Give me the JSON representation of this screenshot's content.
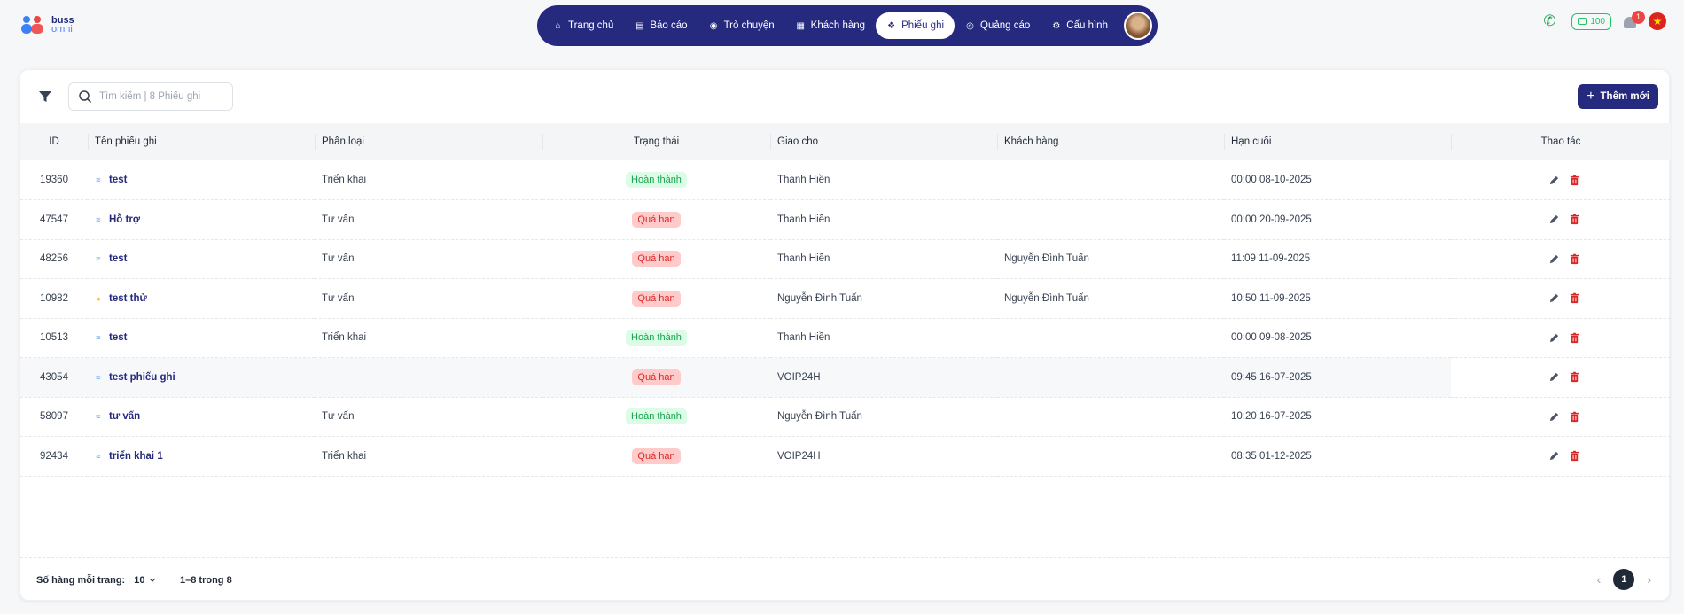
{
  "brand": {
    "line1": "buss",
    "line2": "omni"
  },
  "nav": {
    "items": [
      {
        "label": "Trang chủ",
        "icon": "home-icon",
        "active": false
      },
      {
        "label": "Báo cáo",
        "icon": "chart-icon",
        "active": false
      },
      {
        "label": "Trò chuyện",
        "icon": "chat-icon",
        "active": false
      },
      {
        "label": "Khách hàng",
        "icon": "contact-icon",
        "active": false
      },
      {
        "label": "Phiếu ghi",
        "icon": "ticket-icon",
        "active": true
      },
      {
        "label": "Quảng cáo",
        "icon": "ads-icon",
        "active": false
      },
      {
        "label": "Cấu hình",
        "icon": "gear-icon",
        "active": false
      }
    ]
  },
  "header_right": {
    "credit": "100",
    "notifications": "1"
  },
  "toolbar": {
    "search_placeholder": "Tìm kiếm | 8 Phiếu ghi",
    "add_label": "Thêm mới"
  },
  "table": {
    "columns": {
      "id": "ID",
      "name": "Tên phiếu ghi",
      "category": "Phân loại",
      "status": "Trạng thái",
      "assignee": "Giao cho",
      "customer": "Khách hàng",
      "deadline": "Hạn cuối",
      "actions": "Thao tác"
    },
    "rows": [
      {
        "id": "19360",
        "name": "test",
        "priority": "low",
        "category": "Triển khai",
        "status": "Hoàn thành",
        "status_type": "done",
        "assignee": "Thanh Hiền",
        "customer": "",
        "deadline": "00:00 08-10-2025"
      },
      {
        "id": "47547",
        "name": "Hỗ trợ",
        "priority": "low",
        "category": "Tư vấn",
        "status": "Quá hạn",
        "status_type": "late",
        "assignee": "Thanh Hiền",
        "customer": "",
        "deadline": "00:00 20-09-2025"
      },
      {
        "id": "48256",
        "name": "test",
        "priority": "low",
        "category": "Tư vấn",
        "status": "Quá hạn",
        "status_type": "late",
        "assignee": "Thanh Hiền",
        "customer": "Nguyễn Đình Tuấn",
        "deadline": "11:09 11-09-2025"
      },
      {
        "id": "10982",
        "name": "test thử",
        "priority": "high",
        "category": "Tư vấn",
        "status": "Quá hạn",
        "status_type": "late",
        "assignee": "Nguyễn Đình Tuấn",
        "customer": "Nguyễn Đình Tuấn",
        "deadline": "10:50 11-09-2025"
      },
      {
        "id": "10513",
        "name": "test",
        "priority": "low",
        "category": "Triển khai",
        "status": "Hoàn thành",
        "status_type": "done",
        "assignee": "Thanh Hiền",
        "customer": "",
        "deadline": "00:00 09-08-2025"
      },
      {
        "id": "43054",
        "name": "test phiếu ghi",
        "priority": "low",
        "category": "",
        "status": "Quá hạn",
        "status_type": "late",
        "assignee": "VOIP24H",
        "customer": "",
        "deadline": "09:45 16-07-2025"
      },
      {
        "id": "58097",
        "name": "tư vấn",
        "priority": "low",
        "category": "Tư vấn",
        "status": "Hoàn thành",
        "status_type": "done",
        "assignee": "Nguyễn Đình Tuấn",
        "customer": "",
        "deadline": "10:20 16-07-2025"
      },
      {
        "id": "92434",
        "name": "triển khai 1",
        "priority": "low",
        "category": "Triển khai",
        "status": "Quá hạn",
        "status_type": "late",
        "assignee": "VOIP24H",
        "customer": "",
        "deadline": "08:35 01-12-2025"
      }
    ]
  },
  "footer": {
    "rows_per_page_label": "Số hàng mỗi trang:",
    "rows_per_page": "10",
    "range": "1–8 trong 8",
    "current_page": "1"
  },
  "colors": {
    "primary": "#262a7f",
    "done_bg": "#dcfce7",
    "done_fg": "#16a34a",
    "late_bg": "#fecaca",
    "late_fg": "#dc2626"
  }
}
